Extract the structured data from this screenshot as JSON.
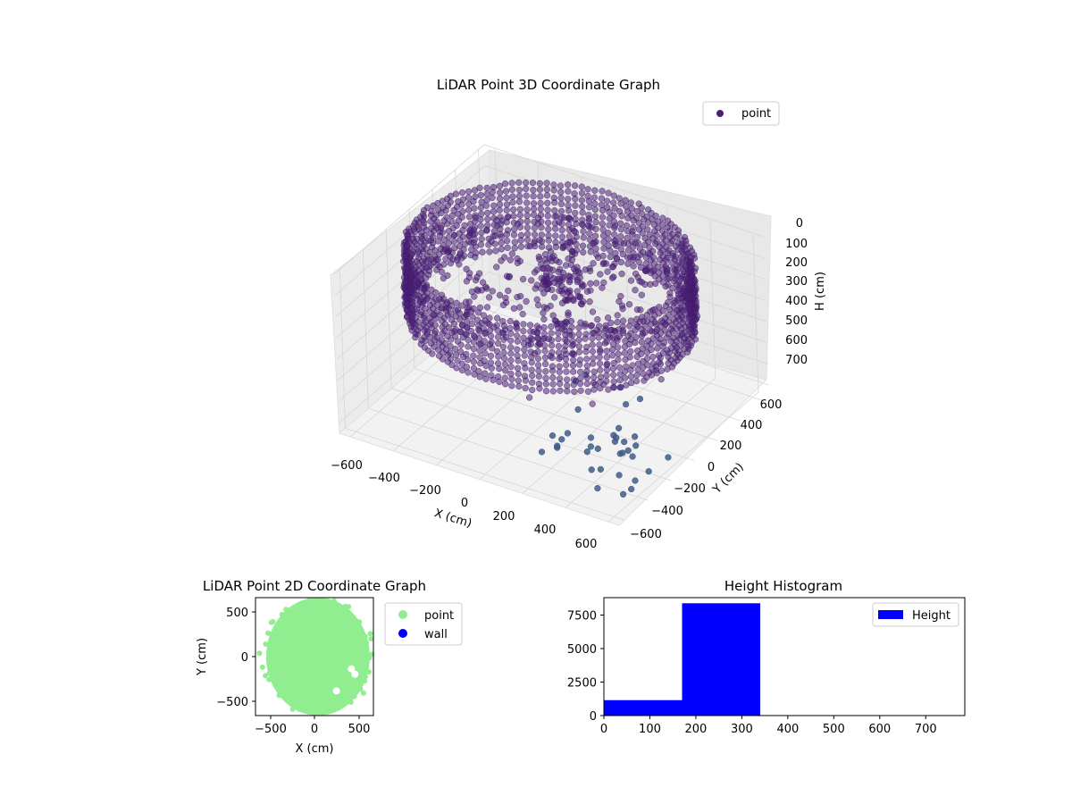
{
  "chart_data": [
    {
      "type": "scatter",
      "projection": "3d",
      "title": "LiDAR Point 3D Coordinate Graph",
      "xlabel": "X (cm)",
      "ylabel": "Y (cm)",
      "zlabel": "H (cm)",
      "x_ticks": [
        "−600",
        "−400",
        "−200",
        "0",
        "200",
        "400",
        "600"
      ],
      "y_ticks": [
        "−600",
        "−400",
        "−200",
        "0",
        "200",
        "400",
        "600"
      ],
      "z_ticks": [
        "0",
        "100",
        "200",
        "300",
        "400",
        "500",
        "600",
        "700"
      ],
      "xlim": [
        -650,
        650
      ],
      "ylim": [
        -650,
        650
      ],
      "zlim": [
        0,
        750
      ],
      "z_inverted": true,
      "grid": true,
      "legend": {
        "position": "top-right",
        "entries": [
          "point"
        ]
      },
      "series": [
        {
          "name": "point",
          "color": "#4b1f78",
          "description_values": {
            "ring_radius": 600,
            "ring_height_range": [
              0,
              300
            ],
            "center_cluster_height": [
              100,
              300
            ],
            "outliers_height_range": [
              250,
              750
            ]
          }
        }
      ]
    },
    {
      "type": "scatter",
      "title": "LiDAR Point 2D Coordinate Graph",
      "xlabel": "X (cm)",
      "ylabel": "Y (cm)",
      "x_ticks": [
        "−500",
        "0",
        "500"
      ],
      "y_ticks": [
        "500",
        "0",
        "−500"
      ],
      "xlim": [
        -670,
        670
      ],
      "ylim": [
        -670,
        670
      ],
      "legend": {
        "position": "outside-right",
        "entries": [
          "point",
          "wall"
        ]
      },
      "series": [
        {
          "name": "point",
          "color": "#90ee90"
        },
        {
          "name": "wall",
          "color": "#0000ff"
        }
      ]
    },
    {
      "type": "bar",
      "subtype": "histogram",
      "title": "Height Histogram",
      "x_ticks": [
        "0",
        "100",
        "200",
        "300",
        "400",
        "500",
        "600",
        "700"
      ],
      "y_ticks": [
        "0",
        "2500",
        "5000",
        "7500"
      ],
      "xlim": [
        0,
        785
      ],
      "ylim": [
        0,
        8800
      ],
      "legend": {
        "position": "top-right",
        "entries": [
          "Height"
        ]
      },
      "bins": [
        {
          "start": 0,
          "end": 170,
          "count": 1150
        },
        {
          "start": 170,
          "end": 340,
          "count": 8380
        },
        {
          "start": 340,
          "end": 510,
          "count": 0
        },
        {
          "start": 510,
          "end": 680,
          "count": 0
        }
      ],
      "series": [
        {
          "name": "Height",
          "color": "#0000ff"
        }
      ]
    }
  ]
}
